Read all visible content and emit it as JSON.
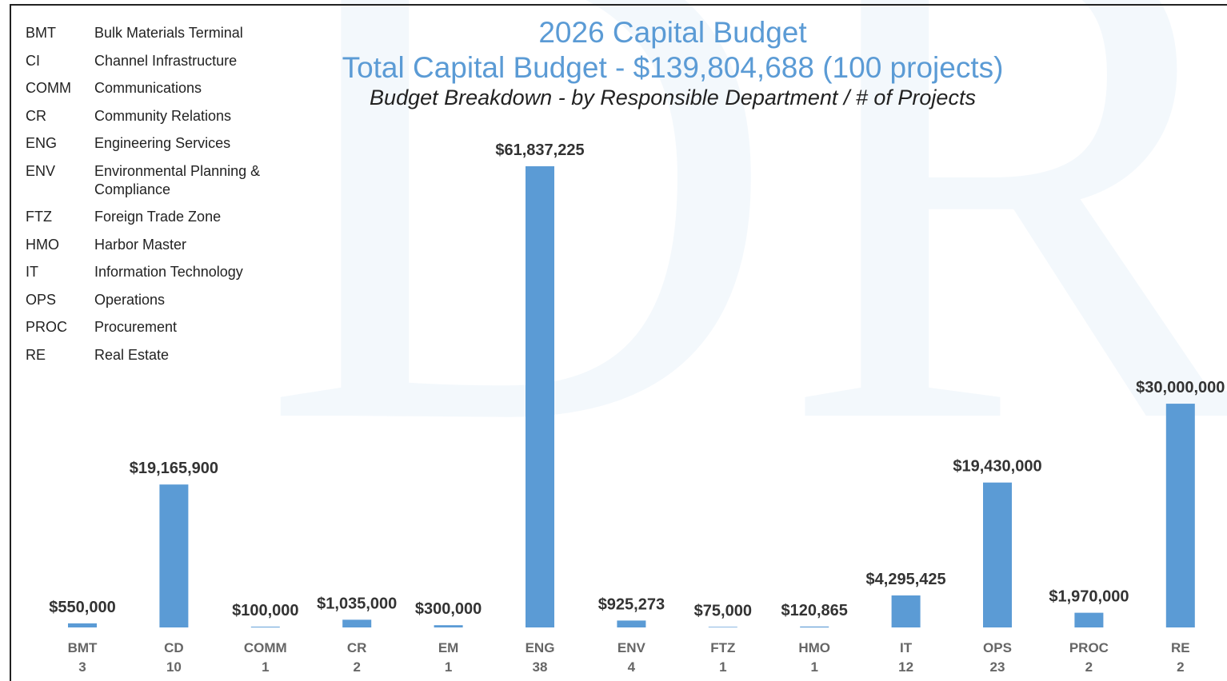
{
  "chart_data": {
    "type": "bar",
    "title": "2026 Capital Budget",
    "title2": "Total Capital Budget - $139,804,688 (100 projects)",
    "subtitle": "Budget Breakdown - by Responsible Department / # of Projects",
    "watermark": "DR",
    "color": "#5b9bd5",
    "categories": [
      "BMT",
      "CD",
      "COMM",
      "CR",
      "EM",
      "ENG",
      "ENV",
      "FTZ",
      "HMO",
      "IT",
      "OPS",
      "PROC",
      "RE"
    ],
    "counts": [
      "3",
      "10",
      "1",
      "2",
      "1",
      "38",
      "4",
      "1",
      "1",
      "12",
      "23",
      "2",
      "2"
    ],
    "values": [
      550000,
      19165900,
      100000,
      1035000,
      300000,
      61837225,
      925273,
      75000,
      120865,
      4295425,
      19430000,
      1970000,
      30000000
    ],
    "value_labels": [
      "$550,000",
      "$19,165,900",
      "$100,000",
      "$1,035,000",
      "$300,000",
      "$61,837,225",
      "$925,273",
      "$75,000",
      "$120,865",
      "$4,295,425",
      "$19,430,000",
      "$1,970,000",
      "$30,000,000"
    ],
    "legend": [
      {
        "abbr": "BMT",
        "name": "Bulk Materials Terminal"
      },
      {
        "abbr": "CI",
        "name": "Channel Infrastructure"
      },
      {
        "abbr": "COMM",
        "name": "Communications"
      },
      {
        "abbr": "CR",
        "name": "Community Relations"
      },
      {
        "abbr": "ENG",
        "name": "Engineering Services"
      },
      {
        "abbr": "ENV",
        "name": "Environmental Planning & Compliance"
      },
      {
        "abbr": "FTZ",
        "name": "Foreign Trade Zone"
      },
      {
        "abbr": "HMO",
        "name": "Harbor Master"
      },
      {
        "abbr": "IT",
        "name": "Information Technology"
      },
      {
        "abbr": "OPS",
        "name": "Operations"
      },
      {
        "abbr": "PROC",
        "name": "Procurement"
      },
      {
        "abbr": "RE",
        "name": "Real Estate"
      }
    ]
  }
}
